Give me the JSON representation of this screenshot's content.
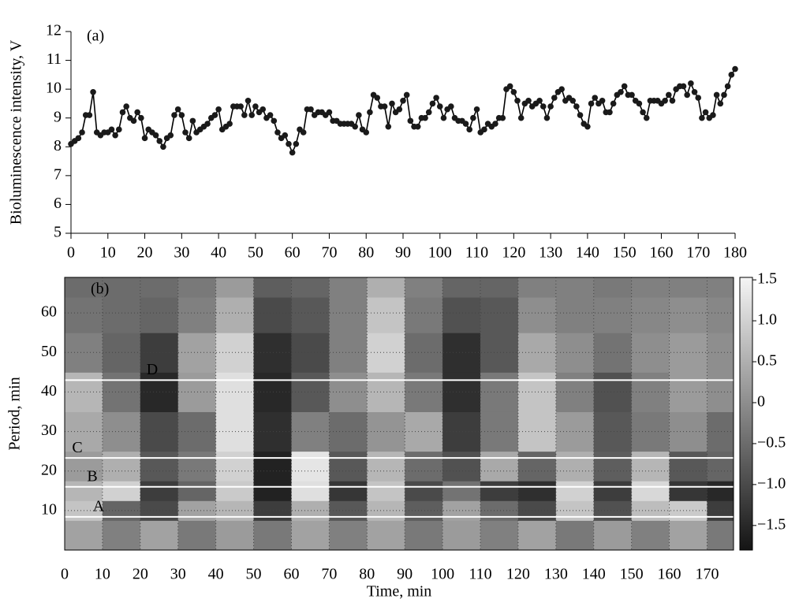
{
  "chart_data": [
    {
      "type": "line",
      "title": "(a)",
      "ylabel": "Bioluminescence intensity, V",
      "x": [
        0,
        1,
        2,
        3,
        4,
        5,
        6,
        7,
        8,
        9,
        10,
        11,
        12,
        13,
        14,
        15,
        16,
        17,
        18,
        19,
        20,
        21,
        22,
        23,
        24,
        25,
        26,
        27,
        28,
        29,
        30,
        31,
        32,
        33,
        34,
        35,
        36,
        37,
        38,
        39,
        40,
        41,
        42,
        43,
        44,
        45,
        46,
        47,
        48,
        49,
        50,
        51,
        52,
        53,
        54,
        55,
        56,
        57,
        58,
        59,
        60,
        61,
        62,
        63,
        64,
        65,
        66,
        67,
        68,
        69,
        70,
        71,
        72,
        73,
        74,
        75,
        76,
        77,
        78,
        79,
        80,
        81,
        82,
        83,
        84,
        85,
        86,
        87,
        88,
        89,
        90,
        91,
        92,
        93,
        94,
        95,
        96,
        97,
        98,
        99,
        100,
        101,
        102,
        103,
        104,
        105,
        106,
        107,
        108,
        109,
        110,
        111,
        112,
        113,
        114,
        115,
        116,
        117,
        118,
        119,
        120,
        121,
        122,
        123,
        124,
        125,
        126,
        127,
        128,
        129,
        130,
        131,
        132,
        133,
        134,
        135,
        136,
        137,
        138,
        139,
        140,
        141,
        142,
        143,
        144,
        145,
        146,
        147,
        148,
        149,
        150,
        151,
        152,
        153,
        154,
        155,
        156,
        157,
        158,
        159,
        160,
        161,
        162,
        163,
        164,
        165,
        166,
        167,
        168,
        169,
        170,
        171,
        172,
        173,
        174,
        175,
        176,
        177,
        178,
        179,
        180
      ],
      "values": [
        8.1,
        8.2,
        8.3,
        8.5,
        9.1,
        9.1,
        9.9,
        8.5,
        8.4,
        8.5,
        8.5,
        8.6,
        8.4,
        8.6,
        9.2,
        9.4,
        9.0,
        8.9,
        9.2,
        9.0,
        8.3,
        8.6,
        8.5,
        8.4,
        8.2,
        8.0,
        8.3,
        8.4,
        9.1,
        9.3,
        9.1,
        8.5,
        8.3,
        8.9,
        8.5,
        8.6,
        8.7,
        8.8,
        9.0,
        9.1,
        9.3,
        8.6,
        8.7,
        8.8,
        9.4,
        9.4,
        9.4,
        9.1,
        9.6,
        9.1,
        9.4,
        9.2,
        9.3,
        9.0,
        9.1,
        8.9,
        8.5,
        8.3,
        8.4,
        8.1,
        7.8,
        8.1,
        8.6,
        8.5,
        9.3,
        9.3,
        9.1,
        9.2,
        9.2,
        9.1,
        9.2,
        8.9,
        8.9,
        8.8,
        8.8,
        8.8,
        8.8,
        8.7,
        9.1,
        8.6,
        8.5,
        9.2,
        9.8,
        9.7,
        9.4,
        9.4,
        8.7,
        9.5,
        9.2,
        9.3,
        9.6,
        9.8,
        8.9,
        8.7,
        8.7,
        9.0,
        9.0,
        9.2,
        9.5,
        9.7,
        9.4,
        9.0,
        9.3,
        9.4,
        9.0,
        8.9,
        8.9,
        8.8,
        8.6,
        9.0,
        9.3,
        8.5,
        8.6,
        8.8,
        8.7,
        8.8,
        9.0,
        9.0,
        10.0,
        10.1,
        9.9,
        9.6,
        9.0,
        9.5,
        9.6,
        9.4,
        9.5,
        9.6,
        9.4,
        9.0,
        9.4,
        9.7,
        9.9,
        10.0,
        9.6,
        9.7,
        9.6,
        9.4,
        9.1,
        8.8,
        8.7,
        9.5,
        9.7,
        9.5,
        9.6,
        9.2,
        9.2,
        9.5,
        9.8,
        9.9,
        10.1,
        9.8,
        9.8,
        9.6,
        9.5,
        9.2,
        9.0,
        9.6,
        9.6,
        9.6,
        9.5,
        9.6,
        9.8,
        9.6,
        10.0,
        10.1,
        10.1,
        9.8,
        10.2,
        9.9,
        9.7,
        9.0,
        9.2,
        9.0,
        9.1,
        9.8,
        9.5,
        9.8,
        10.1,
        10.5,
        10.7
      ],
      "color": "#000000",
      "xlim": [
        0,
        180
      ],
      "xticks": [
        0,
        10,
        20,
        30,
        40,
        50,
        60,
        70,
        80,
        90,
        100,
        110,
        120,
        130,
        140,
        150,
        160,
        170,
        180
      ],
      "ylim": [
        5,
        12
      ],
      "yticks": [
        5,
        6,
        7,
        8,
        9,
        10,
        11,
        12
      ]
    },
    {
      "type": "heatmap",
      "title": "(b)",
      "xlabel": "Time, min",
      "ylabel": "Period, min",
      "x": [
        5,
        15,
        25,
        35,
        45,
        55,
        65,
        75,
        85,
        95,
        105,
        115,
        125,
        135,
        145,
        155,
        165,
        175
      ],
      "y": [
        5,
        10,
        15,
        20,
        30,
        40,
        50,
        60,
        68
      ],
      "z": [
        [
          0.3,
          -0.2,
          0.3,
          -0.3,
          0.2,
          -0.3,
          0.3,
          -0.2,
          0.3,
          -0.3,
          0.2,
          -0.2,
          0.3,
          -0.3,
          0.2,
          -0.2,
          0.3,
          -0.3
        ],
        [
          0.8,
          -0.6,
          -1.0,
          0.3,
          0.6,
          -1.2,
          0.5,
          -0.8,
          0.6,
          -0.7,
          0.3,
          -0.5,
          -1.0,
          0.8,
          -0.9,
          0.7,
          0.9,
          -1.2
        ],
        [
          0.6,
          1.0,
          -1.2,
          -0.6,
          0.9,
          -1.6,
          1.2,
          -1.3,
          0.8,
          -1.0,
          -0.4,
          -1.2,
          -1.4,
          1.0,
          -1.2,
          1.1,
          -1.3,
          -1.5
        ],
        [
          0.2,
          0.5,
          -0.8,
          -0.3,
          1.0,
          -1.6,
          1.3,
          -0.8,
          0.6,
          -0.5,
          -0.9,
          0.4,
          -0.6,
          0.5,
          -0.7,
          0.6,
          -0.8,
          -0.6
        ],
        [
          0.4,
          0.0,
          -1.0,
          -0.5,
          1.2,
          -1.4,
          -0.2,
          -0.5,
          0.1,
          0.4,
          -1.2,
          -0.3,
          0.8,
          0.2,
          -0.8,
          -0.3,
          0.0,
          -0.5
        ],
        [
          0.6,
          -0.4,
          -1.5,
          0.2,
          1.2,
          -1.5,
          -0.8,
          0.0,
          0.6,
          -0.3,
          -1.4,
          -0.3,
          0.8,
          -0.2,
          -0.9,
          -0.2,
          0.2,
          0.0
        ],
        [
          -0.2,
          -0.6,
          -1.2,
          0.3,
          1.0,
          -1.4,
          -1.0,
          -0.2,
          1.0,
          -0.5,
          -1.4,
          -0.8,
          0.4,
          0.0,
          -0.4,
          0.0,
          0.2,
          0.0
        ],
        [
          -0.4,
          -0.5,
          -0.6,
          -0.2,
          0.5,
          -1.0,
          -0.8,
          -0.2,
          0.8,
          -0.3,
          -0.9,
          -0.8,
          0.0,
          -0.2,
          -0.2,
          -0.1,
          0.0,
          -0.1
        ],
        [
          -0.5,
          -0.5,
          -0.5,
          -0.3,
          0.2,
          -0.7,
          -0.6,
          -0.2,
          0.5,
          -0.2,
          -0.6,
          -0.6,
          -0.2,
          -0.2,
          -0.3,
          -0.2,
          -0.2,
          -0.2
        ]
      ],
      "xlim": [
        0,
        177
      ],
      "xticks": [
        0,
        10,
        20,
        30,
        40,
        50,
        60,
        70,
        80,
        90,
        100,
        110,
        120,
        130,
        140,
        150,
        160,
        170
      ],
      "ylim": [
        0,
        69
      ],
      "yticks": [
        10,
        20,
        30,
        40,
        50,
        60
      ],
      "zlim": [
        -1.8,
        1.53
      ],
      "zticks": [
        {
          "value": 1.5,
          "label": "1.5"
        },
        {
          "value": 1.0,
          "label": "1.0"
        },
        {
          "value": 0.5,
          "label": "0.5"
        },
        0,
        {
          "value": -0.5,
          "label": "−0.5"
        },
        {
          "value": -1.0,
          "label": "−1.0"
        },
        {
          "value": -1.5,
          "label": "−1.5"
        }
      ],
      "grid": true,
      "bands": [
        {
          "label": "A",
          "value": 8.4
        },
        {
          "label": "B",
          "value": 16
        },
        {
          "label": "C",
          "value": 23.3
        },
        {
          "label": "D",
          "value": 43
        }
      ]
    }
  ]
}
